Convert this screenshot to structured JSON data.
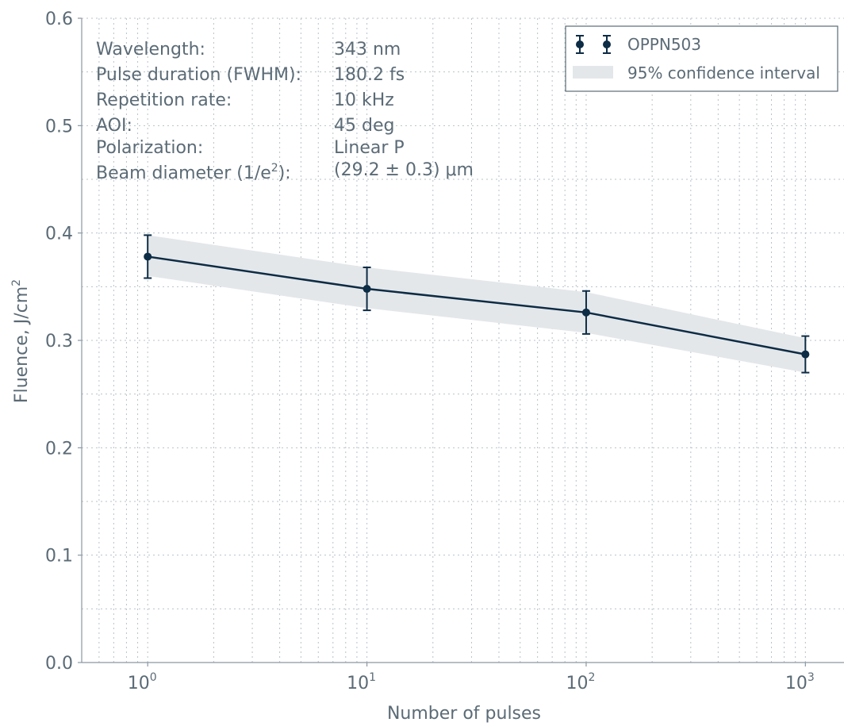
{
  "chart_data": {
    "type": "line",
    "x_scale": "log",
    "xlabel": "Number of pulses",
    "ylabel": "Fluence, J/cm",
    "ylabel_sup": "2",
    "xlim": [
      0.5,
      1500
    ],
    "ylim": [
      0.0,
      0.6
    ],
    "x_ticks": [
      {
        "base": "10",
        "exp": "0",
        "value": 1
      },
      {
        "base": "10",
        "exp": "1",
        "value": 10
      },
      {
        "base": "10",
        "exp": "2",
        "value": 100
      },
      {
        "base": "10",
        "exp": "3",
        "value": 1000
      }
    ],
    "y_ticks": [
      "0.0",
      "0.1",
      "0.2",
      "0.3",
      "0.4",
      "0.5",
      "0.6"
    ],
    "grid": true,
    "series": [
      {
        "name": "OPPN503",
        "color": "#0d2c45",
        "x": [
          1,
          10,
          100,
          1000
        ],
        "y": [
          0.378,
          0.348,
          0.326,
          0.287
        ],
        "err_low": [
          0.358,
          0.328,
          0.306,
          0.27
        ],
        "err_high": [
          0.398,
          0.368,
          0.346,
          0.304
        ]
      }
    ],
    "confidence_band": {
      "name": "95% confidence interval",
      "color": "#e4e7ea",
      "x": [
        1,
        10,
        100,
        1000
      ],
      "lower": [
        0.36,
        0.33,
        0.307,
        0.27
      ],
      "upper": [
        0.398,
        0.368,
        0.345,
        0.302
      ]
    },
    "legend_position": "top-right",
    "annotations": {
      "rows": [
        {
          "label": "Wavelength:",
          "value": "343 nm"
        },
        {
          "label": "Pulse duration (FWHM):",
          "value": "180.2 fs"
        },
        {
          "label": "Repetition rate:",
          "value": "10 kHz"
        },
        {
          "label": "AOI:",
          "value": "45 deg"
        },
        {
          "label": "Polarization:",
          "value": "Linear P"
        }
      ],
      "beam": {
        "label_pre": "Beam diameter (1/e",
        "label_sup": "2",
        "label_post": "):",
        "value": "(29.2 ± 0.3) μm"
      }
    }
  }
}
